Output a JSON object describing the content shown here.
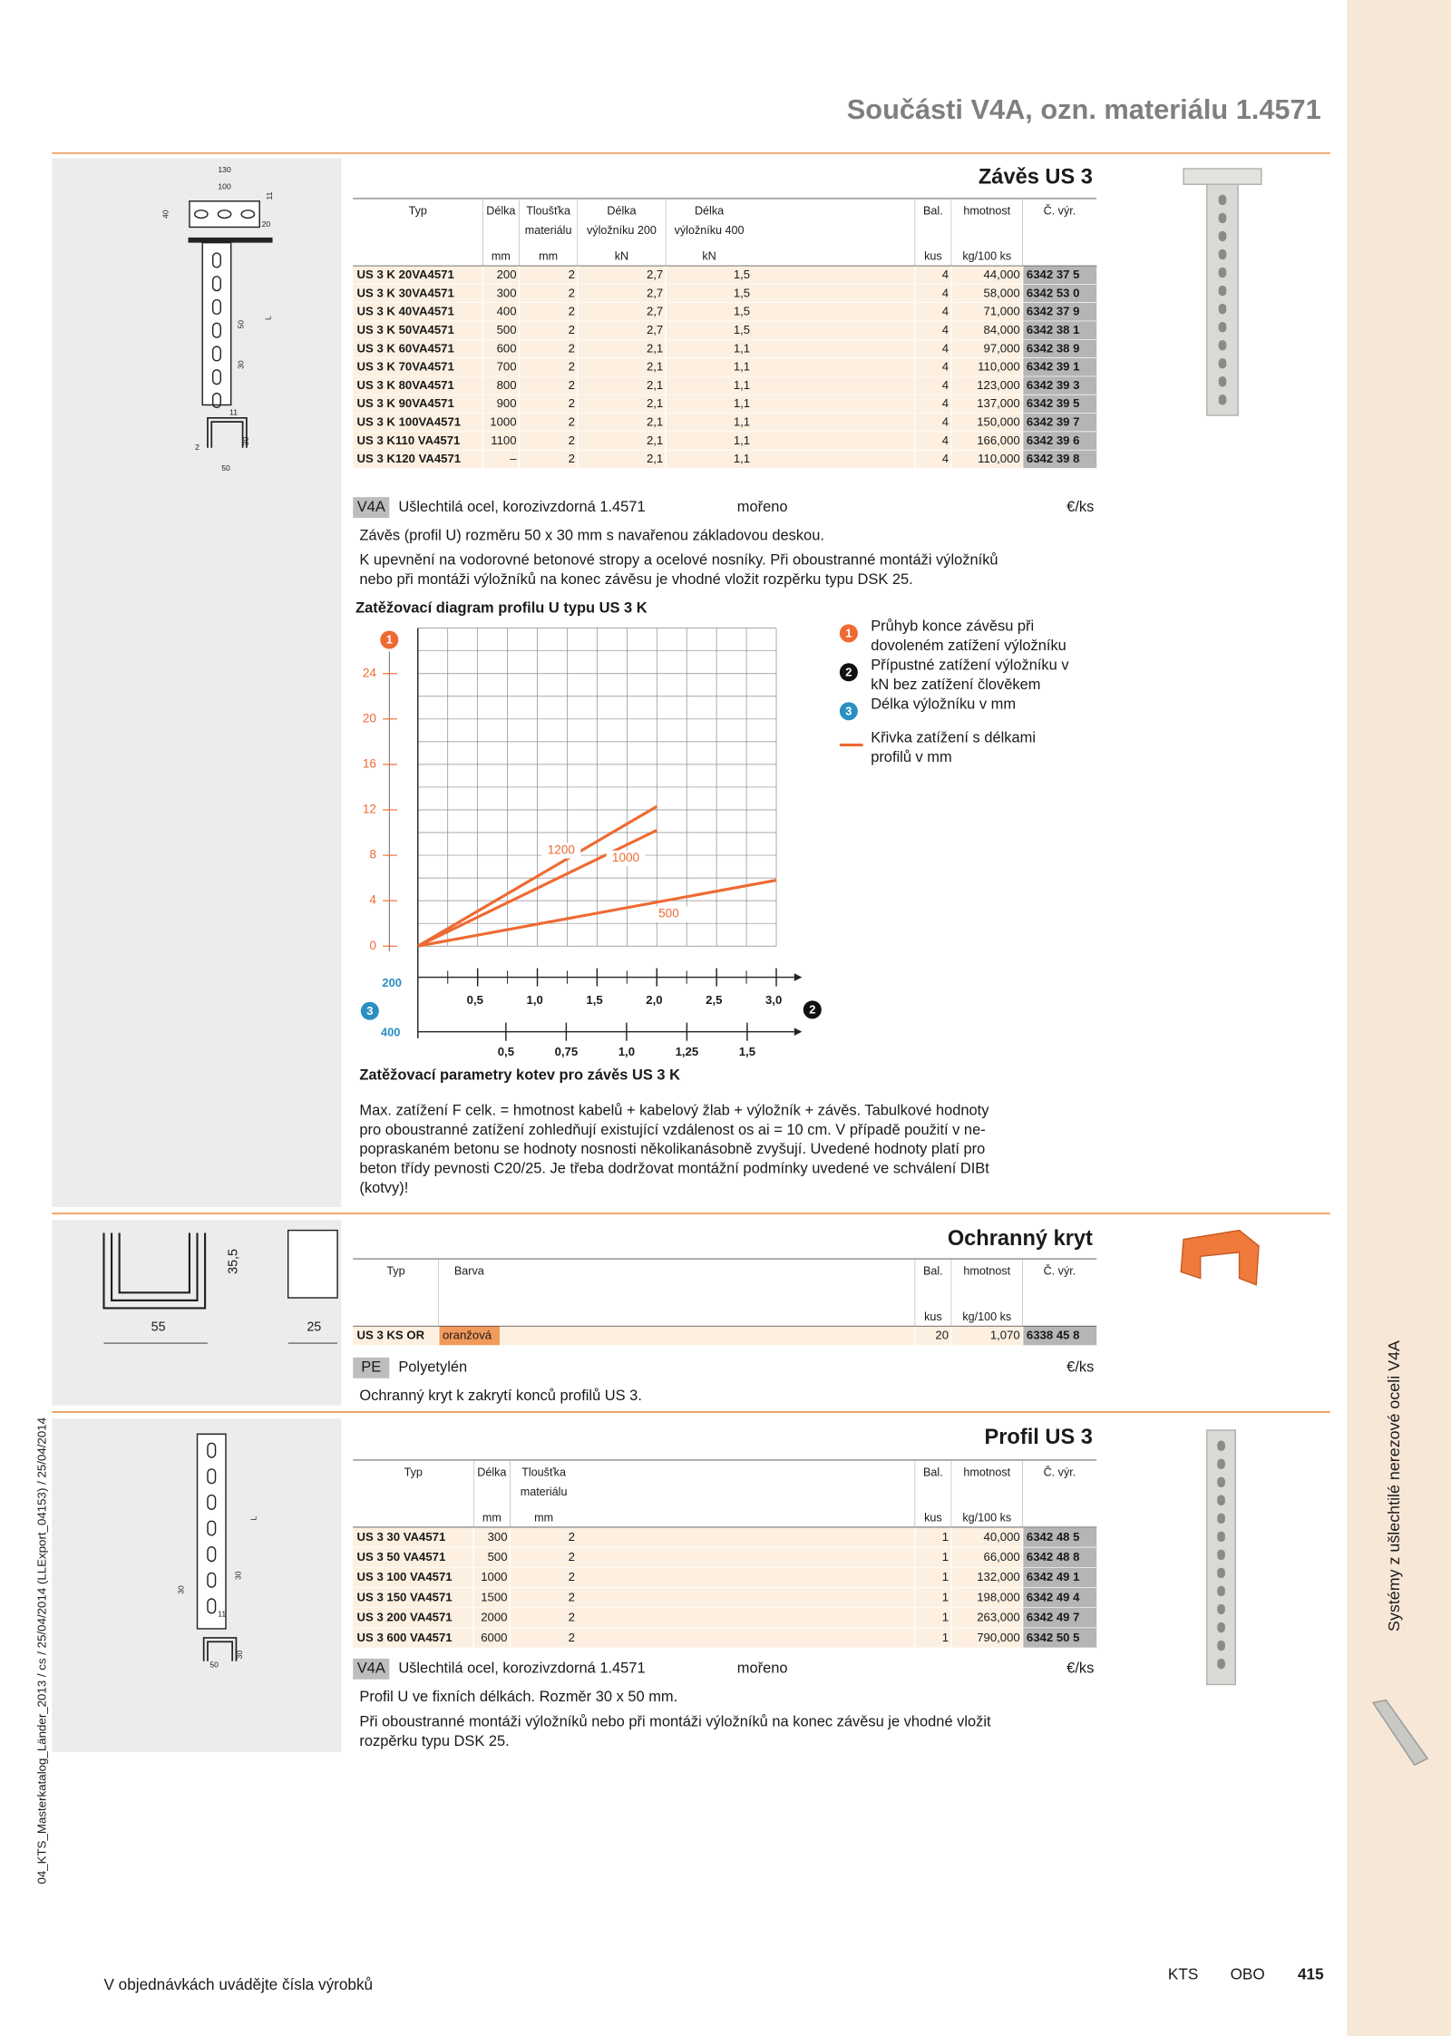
{
  "header": {
    "title": "Součásti V4A, ozn. materiálu 1.4571"
  },
  "sections": [
    {
      "title": "Závěs US 3",
      "drawing_labels": [
        "130",
        "100",
        "40",
        "11",
        "20",
        "50",
        "L",
        "30",
        "11",
        "2",
        "30",
        "50"
      ],
      "table": {
        "columns": [
          {
            "label": [
              "Typ"
            ]
          },
          {
            "label": [
              "Délka"
            ],
            "unit": "mm"
          },
          {
            "label": [
              "Tloušťka",
              "materiálu"
            ],
            "unit": "mm"
          },
          {
            "label": [
              "Délka",
              "výložníku 200"
            ],
            "unit": "kN"
          },
          {
            "label": [
              "Délka",
              "výložníku 400"
            ],
            "unit": "kN"
          },
          {
            "label": [
              "Bal."
            ],
            "unit": "kus"
          },
          {
            "label": [
              "hmotnost"
            ],
            "unit": "kg/100 ks"
          },
          {
            "label": [
              "Č. výr."
            ]
          }
        ],
        "rows": [
          [
            "US 3 K 20VA4571",
            "200",
            "2",
            "2,7",
            "1,5",
            "4",
            "44,000",
            "6342 37 5"
          ],
          [
            "US 3 K 30VA4571",
            "300",
            "2",
            "2,7",
            "1,5",
            "4",
            "58,000",
            "6342 53 0"
          ],
          [
            "US 3 K 40VA4571",
            "400",
            "2",
            "2,7",
            "1,5",
            "4",
            "71,000",
            "6342 37 9"
          ],
          [
            "US 3 K 50VA4571",
            "500",
            "2",
            "2,7",
            "1,5",
            "4",
            "84,000",
            "6342 38 1"
          ],
          [
            "US 3 K 60VA4571",
            "600",
            "2",
            "2,1",
            "1,1",
            "4",
            "97,000",
            "6342 38 9"
          ],
          [
            "US 3 K 70VA4571",
            "700",
            "2",
            "2,1",
            "1,1",
            "4",
            "110,000",
            "6342 39 1"
          ],
          [
            "US 3 K 80VA4571",
            "800",
            "2",
            "2,1",
            "1,1",
            "4",
            "123,000",
            "6342 39 3"
          ],
          [
            "US 3 K 90VA4571",
            "900",
            "2",
            "2,1",
            "1,1",
            "4",
            "137,000",
            "6342 39 5"
          ],
          [
            "US 3 K 100VA4571",
            "1000",
            "2",
            "2,1",
            "1,1",
            "4",
            "150,000",
            "6342 39 7"
          ],
          [
            "US 3 K110 VA4571",
            "1100",
            "2",
            "2,1",
            "1,1",
            "4",
            "166,000",
            "6342 39 6"
          ],
          [
            "US 3 K120 VA4571",
            "–",
            "2",
            "2,1",
            "1,1",
            "4",
            "110,000",
            "6342 39 8"
          ]
        ]
      },
      "material": {
        "code": "V4A",
        "name": "Ušlechtilá ocel, korozivzdorná 1.4571",
        "finish": "mořeno",
        "unit": "€/ks"
      },
      "description": [
        [
          "Závěs (profil U) rozměru 50 x 30 mm s navařenou základovou deskou."
        ],
        [
          "K upevnění na vodorovné betonové stropy a ocelové nosníky. Při oboustranné montáži výložníků",
          "nebo při montáži výložníků na konec závěsu je vhodné vložit rozpěrku typu DSK 25."
        ]
      ]
    },
    {
      "title": "Ochranný kryt",
      "drawing_labels": [
        "35,5",
        "55",
        "25"
      ],
      "table": {
        "columns": [
          {
            "label": [
              "Typ"
            ]
          },
          {
            "label": [
              "Barva"
            ]
          },
          {
            "label": [
              "Bal."
            ],
            "unit": "kus"
          },
          {
            "label": [
              "hmotnost"
            ],
            "unit": "kg/100 ks"
          },
          {
            "label": [
              "Č. výr."
            ]
          }
        ],
        "rows": [
          [
            "US 3 KS OR",
            "oranžová",
            "20",
            "1,070",
            "6338 45 8"
          ]
        ]
      },
      "material": {
        "code": "PE",
        "name": "Polyetylén",
        "unit": "€/ks"
      },
      "description": [
        [
          "Ochranný kryt k zakrytí konců profilů US 3."
        ]
      ]
    },
    {
      "title": "Profil US 3",
      "drawing_labels": [
        "L",
        "30",
        "30",
        "11",
        "30",
        "50"
      ],
      "table": {
        "columns": [
          {
            "label": [
              "Typ"
            ]
          },
          {
            "label": [
              "Délka"
            ],
            "unit": "mm"
          },
          {
            "label": [
              "Tloušťka",
              "materiálu"
            ],
            "unit": "mm"
          },
          {
            "label": [
              "Bal."
            ],
            "unit": "kus"
          },
          {
            "label": [
              "hmotnost"
            ],
            "unit": "kg/100 ks"
          },
          {
            "label": [
              "Č. výr."
            ]
          }
        ],
        "rows": [
          [
            "US 3 30 VA4571",
            "300",
            "2",
            "1",
            "40,000",
            "6342 48 5"
          ],
          [
            "US 3 50 VA4571",
            "500",
            "2",
            "1",
            "66,000",
            "6342 48 8"
          ],
          [
            "US 3 100 VA4571",
            "1000",
            "2",
            "1",
            "132,000",
            "6342 49 1"
          ],
          [
            "US 3 150 VA4571",
            "1500",
            "2",
            "1",
            "198,000",
            "6342 49 4"
          ],
          [
            "US 3 200 VA4571",
            "2000",
            "2",
            "1",
            "263,000",
            "6342 49 7"
          ],
          [
            "US 3 600 VA4571",
            "6000",
            "2",
            "1",
            "790,000",
            "6342 50 5"
          ]
        ]
      },
      "material": {
        "code": "V4A",
        "name": "Ušlechtilá ocel, korozivzdorná 1.4571",
        "finish": "mořeno",
        "unit": "€/ks"
      },
      "description": [
        [
          "Profil U ve fixních délkách. Rozměr 30 x 50 mm."
        ],
        [
          "Při oboustranné montáži výložníků nebo při montáži výložníků na konec závěsu je vhodné vložit",
          "rozpěrku typu DSK 25."
        ]
      ]
    }
  ],
  "chart_data": {
    "type": "line",
    "title": "Zatěžovací diagram profilu U typu US 3 K",
    "ylim": [
      0,
      28
    ],
    "yticks": [
      0,
      4,
      8,
      12,
      16,
      20,
      24
    ],
    "xlim": [
      0,
      3.15
    ],
    "xticks": [
      {
        "value": 0.5,
        "label": "0,5"
      },
      {
        "value": 1,
        "label": "1,0"
      },
      {
        "value": 1.5,
        "label": "1,5"
      },
      {
        "value": 2,
        "label": "2,0"
      },
      {
        "value": 2.5,
        "label": "2,5"
      },
      {
        "value": 3,
        "label": "3,0"
      }
    ],
    "x_label": "200",
    "x2lim": [
      0.135,
      1.695
    ],
    "x2ticks": [
      {
        "value": 0.5,
        "label": "0,5"
      },
      {
        "value": 0.75,
        "label": "0,75"
      },
      {
        "value": 1,
        "label": "1,0"
      },
      {
        "value": 1.25,
        "label": "1,25"
      },
      {
        "value": 1.5,
        "label": "1,5"
      }
    ],
    "x2_label": "400",
    "grid": true,
    "y_marker": "1",
    "x_marker": "3",
    "value_marker": "2",
    "series": [
      {
        "name": "1200",
        "color": "#ee6a32",
        "x": [
          0,
          2
        ],
        "values": [
          0,
          12.3
        ]
      },
      {
        "name": "1000",
        "color": "#ee6a32",
        "x": [
          0,
          2
        ],
        "values": [
          0,
          10.2
        ]
      },
      {
        "name": "500",
        "color": "#ee6a32",
        "x": [
          0,
          3
        ],
        "values": [
          0,
          5.8
        ]
      }
    ],
    "legend": [
      {
        "marker": "1",
        "color": "#ee6a32",
        "lines": [
          "Průhyb konce závěsu při",
          "dovoleném zatížení výložníku"
        ]
      },
      {
        "marker": "2",
        "color": "#111111",
        "lines": [
          "Přípustné zatížení výložníku v",
          "kN bez zatížení člověkem"
        ]
      },
      {
        "marker": "3",
        "color": "#2a8fc1",
        "lines": [
          "Délka výložníku v mm"
        ]
      },
      {
        "color": "#ee6a32",
        "lines": [
          "Křivka zatížení s délkami",
          "profilů v mm"
        ]
      }
    ]
  },
  "anchor_params": {
    "title": "Zatěžovací parametry kotev pro závěs US 3 K",
    "lines": [
      "Max. zatížení F celk. = hmotnost kabelů + kabelový žlab + výložník + závěs. Tabulkové hodnoty",
      "pro oboustranné zatížení zohledňují existující vzdálenost os ai = 10 cm. V případě použití v ne-",
      "popraskaném betonu se hodnoty nosnosti několikanásobně zvyšují. Uvedené hodnoty platí pro",
      "beton třídy pevnosti C20/25. Je třeba dodržovat montážní podmínky uvedené ve schválení DIBt",
      "(kotvy)!"
    ]
  },
  "sidebar": {
    "text": "Systémy z ušlechtilé nerezové oceli V4A"
  },
  "job_info": "04_KTS_Masterkatalog_Länder_2013 / cs / 25/04/2014 (LLExport_04153) / 25/04/2014",
  "footer": {
    "note": "V objednávkách uvádějte čísla výrobků",
    "section": "KTS",
    "brand": "OBO",
    "page": "415"
  }
}
